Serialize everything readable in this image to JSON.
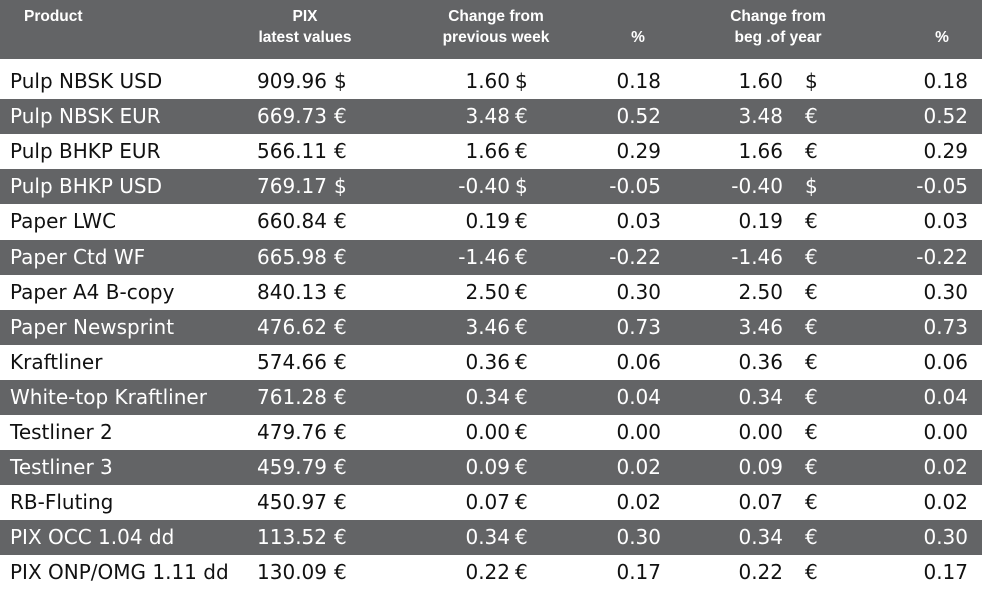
{
  "header": {
    "product": "Product",
    "pix_line1": "PIX",
    "pix_line2": "latest values",
    "week_line1": "Change from",
    "week_line2": "previous week",
    "week_pct": "%",
    "year_line1": "Change from",
    "year_line2": "beg .of year",
    "year_pct": "%"
  },
  "rows": [
    {
      "product": "Pulp NBSK USD",
      "pix": "909.96",
      "pix_cur": "$",
      "week": "1.60",
      "week_cur": "$",
      "week_pct": "0.18",
      "year": "1.60",
      "year_cur": "$",
      "year_pct": "0.18"
    },
    {
      "product": "Pulp NBSK EUR",
      "pix": "669.73",
      "pix_cur": "€",
      "week": "3.48",
      "week_cur": "€",
      "week_pct": "0.52",
      "year": "3.48",
      "year_cur": "€",
      "year_pct": "0.52"
    },
    {
      "product": "Pulp BHKP EUR",
      "pix": "566.11",
      "pix_cur": "€",
      "week": "1.66",
      "week_cur": "€",
      "week_pct": "0.29",
      "year": "1.66",
      "year_cur": "€",
      "year_pct": "0.29"
    },
    {
      "product": "Pulp BHKP USD",
      "pix": "769.17",
      "pix_cur": "$",
      "week": "-0.40",
      "week_cur": "$",
      "week_pct": "-0.05",
      "year": "-0.40",
      "year_cur": "$",
      "year_pct": "-0.05"
    },
    {
      "product": "Paper LWC",
      "pix": "660.84",
      "pix_cur": "€",
      "week": "0.19",
      "week_cur": "€",
      "week_pct": "0.03",
      "year": "0.19",
      "year_cur": "€",
      "year_pct": "0.03"
    },
    {
      "product": "Paper Ctd WF",
      "pix": "665.98",
      "pix_cur": "€",
      "week": "-1.46",
      "week_cur": "€",
      "week_pct": "-0.22",
      "year": "-1.46",
      "year_cur": "€",
      "year_pct": "-0.22"
    },
    {
      "product": "Paper A4 B-copy",
      "pix": "840.13",
      "pix_cur": "€",
      "week": "2.50",
      "week_cur": "€",
      "week_pct": "0.30",
      "year": "2.50",
      "year_cur": "€",
      "year_pct": "0.30"
    },
    {
      "product": "Paper Newsprint",
      "pix": "476.62",
      "pix_cur": "€",
      "week": "3.46",
      "week_cur": "€",
      "week_pct": "0.73",
      "year": "3.46",
      "year_cur": "€",
      "year_pct": "0.73"
    },
    {
      "product": "Kraftliner",
      "pix": "574.66",
      "pix_cur": "€",
      "week": "0.36",
      "week_cur": "€",
      "week_pct": "0.06",
      "year": "0.36",
      "year_cur": "€",
      "year_pct": "0.06"
    },
    {
      "product": "White-top Kraftliner",
      "pix": "761.28",
      "pix_cur": "€",
      "week": "0.34",
      "week_cur": "€",
      "week_pct": "0.04",
      "year": "0.34",
      "year_cur": "€",
      "year_pct": "0.04"
    },
    {
      "product": "Testliner 2",
      "pix": "479.76",
      "pix_cur": "€",
      "week": "0.00",
      "week_cur": "€",
      "week_pct": "0.00",
      "year": "0.00",
      "year_cur": "€",
      "year_pct": "0.00"
    },
    {
      "product": "Testliner 3",
      "pix": "459.79",
      "pix_cur": "€",
      "week": "0.09",
      "week_cur": "€",
      "week_pct": "0.02",
      "year": "0.09",
      "year_cur": "€",
      "year_pct": "0.02"
    },
    {
      "product": "RB-Fluting",
      "pix": "450.97",
      "pix_cur": "€",
      "week": "0.07",
      "week_cur": "€",
      "week_pct": "0.02",
      "year": "0.07",
      "year_cur": "€",
      "year_pct": "0.02"
    },
    {
      "product": "PIX OCC 1.04 dd",
      "pix": "113.52",
      "pix_cur": "€",
      "week": "0.34",
      "week_cur": "€",
      "week_pct": "0.30",
      "year": "0.34",
      "year_cur": "€",
      "year_pct": "0.30"
    },
    {
      "product": "PIX ONP/OMG 1.11 dd",
      "pix": "130.09",
      "pix_cur": "€",
      "week": "0.22",
      "week_cur": "€",
      "week_pct": "0.17",
      "year": "0.22",
      "year_cur": "€",
      "year_pct": "0.17"
    }
  ],
  "colors": {
    "header_bg": "#636466",
    "shaded_row_bg": "#636466",
    "header_text": "#ffffff",
    "body_text": "#111111"
  }
}
